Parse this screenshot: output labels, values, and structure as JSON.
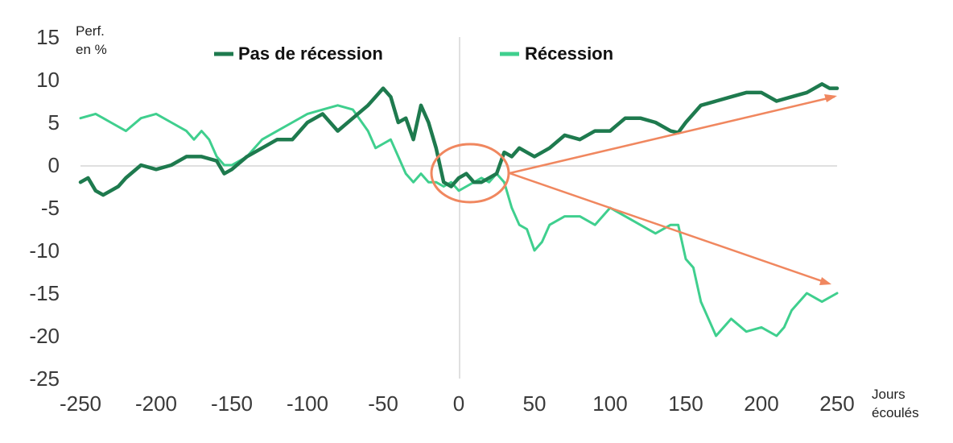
{
  "chart_data": {
    "type": "line",
    "ylabel": "Perf.\nen %",
    "xlabel": "Jours\nécoulés",
    "xlim": [
      -250,
      250
    ],
    "ylim": [
      -25,
      15
    ],
    "x_ticks": [
      -250,
      -200,
      -150,
      -100,
      -50,
      0,
      50,
      100,
      150,
      200,
      250
    ],
    "y_ticks": [
      15,
      10,
      5,
      0,
      -5,
      -10,
      -15,
      -20,
      -25
    ],
    "legend_position": "top",
    "colors": {
      "pas_de_recession": "#1e7a4e",
      "recession": "#3fcf8e",
      "annotation": "#f0875f",
      "axis": "#cfcfcf"
    },
    "series": [
      {
        "name": "Pas de récession",
        "x": [
          -250,
          -245,
          -240,
          -235,
          -230,
          -225,
          -220,
          -210,
          -200,
          -190,
          -180,
          -170,
          -160,
          -155,
          -150,
          -140,
          -130,
          -120,
          -110,
          -100,
          -90,
          -80,
          -70,
          -60,
          -55,
          -50,
          -45,
          -40,
          -35,
          -30,
          -25,
          -20,
          -15,
          -10,
          -5,
          0,
          5,
          10,
          15,
          20,
          25,
          30,
          35,
          40,
          50,
          60,
          70,
          80,
          90,
          100,
          110,
          120,
          130,
          140,
          145,
          150,
          160,
          170,
          180,
          190,
          200,
          210,
          220,
          230,
          240,
          245,
          250
        ],
        "values": [
          -2,
          -1.5,
          -3,
          -3.5,
          -3,
          -2.5,
          -1.5,
          0,
          -0.5,
          0,
          1,
          1,
          0.5,
          -1,
          -0.5,
          1,
          2,
          3,
          3,
          5,
          6,
          4,
          5.5,
          7,
          8,
          9,
          8,
          5,
          5.5,
          3,
          7,
          5,
          2,
          -2,
          -2.5,
          -1.5,
          -1,
          -2,
          -2,
          -1.5,
          -1,
          1.5,
          1,
          2,
          1,
          2,
          3.5,
          3,
          4,
          4,
          5.5,
          5.5,
          5,
          4,
          3.8,
          5,
          7,
          7.5,
          8,
          8.5,
          8.5,
          7.5,
          8,
          8.5,
          9.5,
          9,
          9
        ]
      },
      {
        "name": "Récession",
        "x": [
          -250,
          -240,
          -230,
          -220,
          -210,
          -200,
          -190,
          -180,
          -175,
          -170,
          -165,
          -160,
          -155,
          -150,
          -140,
          -130,
          -120,
          -110,
          -100,
          -90,
          -80,
          -70,
          -60,
          -55,
          -50,
          -45,
          -40,
          -35,
          -30,
          -25,
          -20,
          -15,
          -10,
          -5,
          0,
          5,
          10,
          15,
          20,
          25,
          30,
          35,
          40,
          45,
          50,
          55,
          60,
          70,
          80,
          90,
          100,
          110,
          120,
          130,
          140,
          145,
          150,
          155,
          160,
          165,
          170,
          180,
          190,
          200,
          210,
          215,
          220,
          230,
          240,
          250
        ],
        "values": [
          5.5,
          6,
          5,
          4,
          5.5,
          6,
          5,
          4,
          3,
          4,
          3,
          1,
          0,
          0,
          1,
          3,
          4,
          5,
          6,
          6.5,
          7,
          6.5,
          4,
          2,
          2.5,
          3,
          1,
          -1,
          -2,
          -1,
          -2,
          -2,
          -2.5,
          -2,
          -3,
          -2.5,
          -2,
          -1.5,
          -2,
          -1,
          -2,
          -5,
          -7,
          -7.5,
          -10,
          -9,
          -7,
          -6,
          -6,
          -7,
          -5,
          -6,
          -7,
          -8,
          -7,
          -7,
          -11,
          -12,
          -16,
          -18,
          -20,
          -18,
          -19.5,
          -19,
          -20,
          -19,
          -17,
          -15,
          -16,
          -15
        ]
      }
    ]
  }
}
